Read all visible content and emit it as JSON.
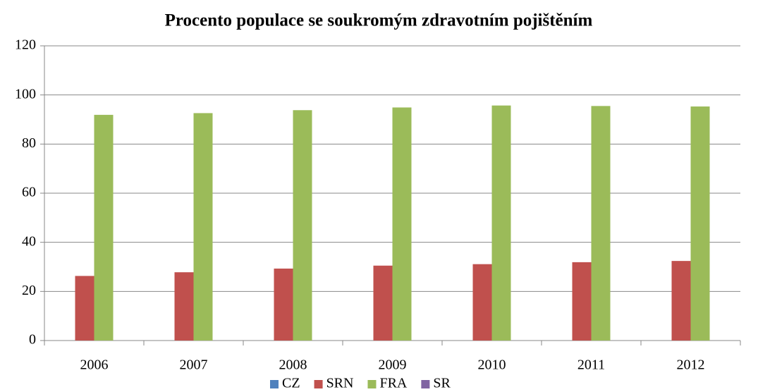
{
  "chart_data": {
    "type": "bar",
    "title": "Procento populace se soukromým zdravotním pojištěním",
    "categories": [
      "2006",
      "2007",
      "2008",
      "2009",
      "2010",
      "2011",
      "2012"
    ],
    "series": [
      {
        "name": "CZ",
        "color": "#4f81bd",
        "values": [
          null,
          null,
          null,
          null,
          null,
          null,
          null
        ]
      },
      {
        "name": "SRN",
        "color": "#c0504d",
        "values": [
          26.3,
          27.8,
          29.3,
          30.5,
          31.1,
          31.9,
          32.4
        ]
      },
      {
        "name": "FRA",
        "color": "#9bbb59",
        "values": [
          91.9,
          92.6,
          93.8,
          94.9,
          95.7,
          95.5,
          95.3
        ]
      },
      {
        "name": "SR",
        "color": "#8064a2",
        "values": [
          null,
          null,
          null,
          null,
          null,
          null,
          null
        ]
      }
    ],
    "ylim": [
      0,
      120
    ],
    "yticks": [
      0,
      20,
      40,
      60,
      80,
      100,
      120
    ],
    "grid": true,
    "legend": "bottom"
  }
}
